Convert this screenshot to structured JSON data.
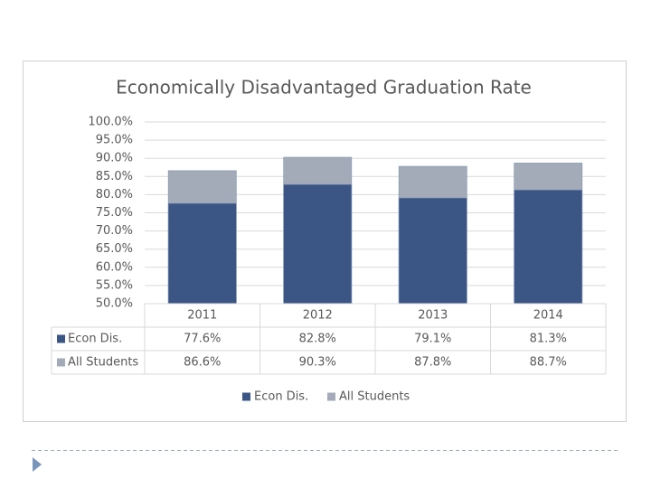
{
  "chart_data": {
    "type": "bar",
    "title": "Economically Disadvantaged Graduation Rate",
    "categories": [
      "2011",
      "2012",
      "2013",
      "2014"
    ],
    "series": [
      {
        "name": "Econ Dis.",
        "color": "#3b5585",
        "values": [
          77.6,
          82.8,
          79.1,
          81.3
        ],
        "value_labels": [
          "77.6%",
          "82.8%",
          "79.1%",
          "81.3%"
        ]
      },
      {
        "name": "All Students",
        "color": "#a3abb8",
        "values": [
          86.6,
          90.3,
          87.8,
          88.7
        ],
        "value_labels": [
          "86.6%",
          "90.3%",
          "87.8%",
          "88.7%"
        ]
      }
    ],
    "ylim": [
      50,
      100
    ],
    "yticks": [
      {
        "value": 50,
        "label": "50.0%"
      },
      {
        "value": 55,
        "label": "55.0%"
      },
      {
        "value": 60,
        "label": "60.0%"
      },
      {
        "value": 65,
        "label": "65.0%"
      },
      {
        "value": 70,
        "label": "70.0%"
      },
      {
        "value": 75,
        "label": "75.0%"
      },
      {
        "value": 80,
        "label": "80.0%"
      },
      {
        "value": 85,
        "label": "85.0%"
      },
      {
        "value": 90,
        "label": "90.0%"
      },
      {
        "value": 95,
        "label": "95.0%"
      },
      {
        "value": 100,
        "label": "100.0%"
      }
    ],
    "grid": true,
    "legend": "bottom"
  }
}
